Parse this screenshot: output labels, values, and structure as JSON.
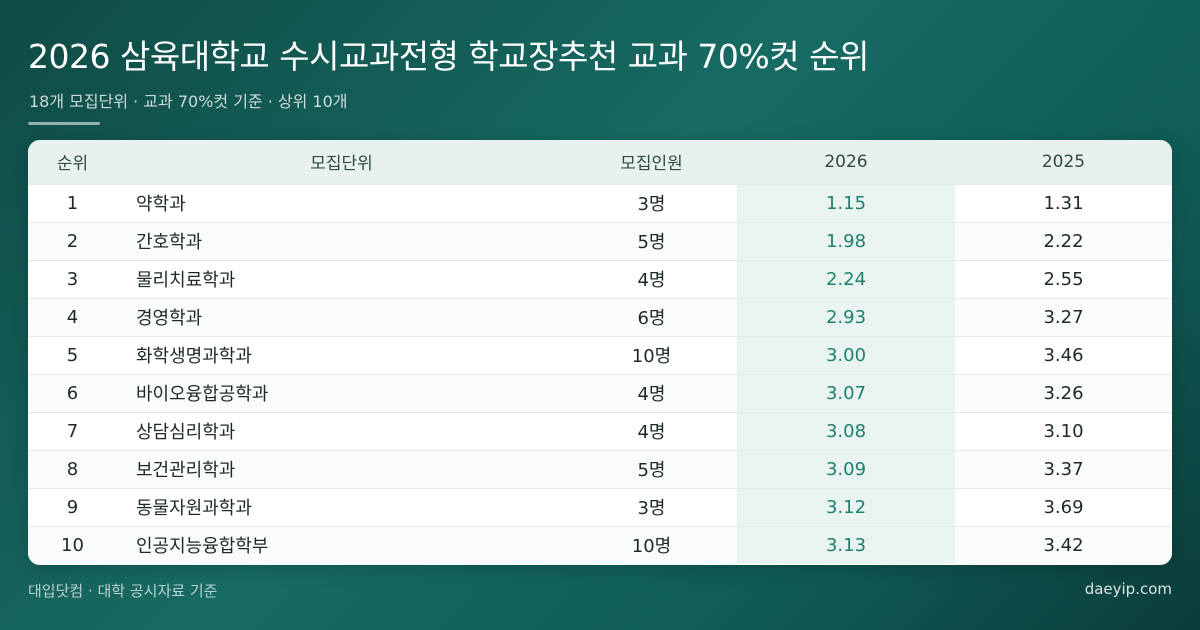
{
  "header": {
    "title": "2026 삼육대학교 수시교과전형 학교장추천 교과 70%컷 순위",
    "subtitle": "18개 모집단위 · 교과 70%컷 기준 · 상위 10개"
  },
  "table": {
    "columns": [
      "순위",
      "모집단위",
      "모집인원",
      "2026",
      "2025"
    ],
    "rows": [
      {
        "rank": "1",
        "unit": "약학과",
        "quota": "3명",
        "y2026": "1.15",
        "y2025": "1.31"
      },
      {
        "rank": "2",
        "unit": "간호학과",
        "quota": "5명",
        "y2026": "1.98",
        "y2025": "2.22"
      },
      {
        "rank": "3",
        "unit": "물리치료학과",
        "quota": "4명",
        "y2026": "2.24",
        "y2025": "2.55"
      },
      {
        "rank": "4",
        "unit": "경영학과",
        "quota": "6명",
        "y2026": "2.93",
        "y2025": "3.27"
      },
      {
        "rank": "5",
        "unit": "화학생명과학과",
        "quota": "10명",
        "y2026": "3.00",
        "y2025": "3.46"
      },
      {
        "rank": "6",
        "unit": "바이오융합공학과",
        "quota": "4명",
        "y2026": "3.07",
        "y2025": "3.26"
      },
      {
        "rank": "7",
        "unit": "상담심리학과",
        "quota": "4명",
        "y2026": "3.08",
        "y2025": "3.10"
      },
      {
        "rank": "8",
        "unit": "보건관리학과",
        "quota": "5명",
        "y2026": "3.09",
        "y2025": "3.37"
      },
      {
        "rank": "9",
        "unit": "동물자원과학과",
        "quota": "3명",
        "y2026": "3.12",
        "y2025": "3.69"
      },
      {
        "rank": "10",
        "unit": "인공지능융합학부",
        "quota": "10명",
        "y2026": "3.13",
        "y2025": "3.42"
      }
    ]
  },
  "footer": {
    "source": "대입닷컴 · 대학 공시자료 기준",
    "site": "daeyip.com"
  },
  "colors": {
    "background": "#176b63",
    "header_row": "#e8f1ee",
    "highlight_column": "#e9f4f0",
    "highlight_text": "#1e7f6d"
  }
}
